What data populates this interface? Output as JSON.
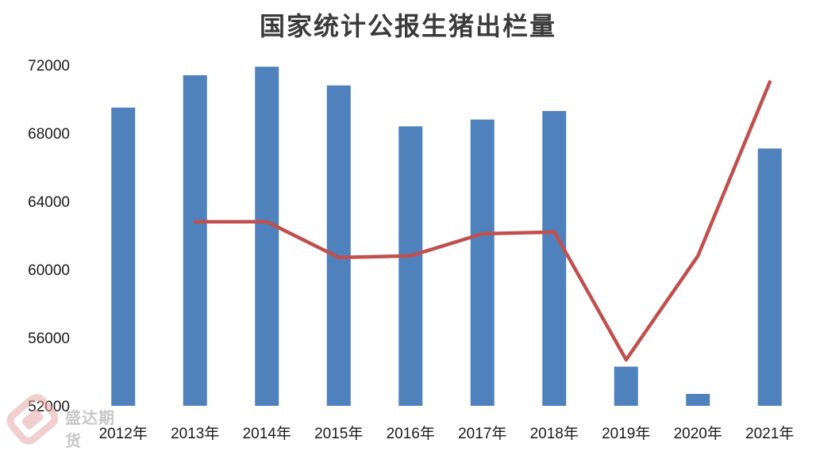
{
  "chart_data": {
    "type": "bar",
    "title": "国家统计公报生猪出栏量",
    "categories": [
      "2012年",
      "2013年",
      "2014年",
      "2015年",
      "2016年",
      "2017年",
      "2018年",
      "2019年",
      "2020年",
      "2021年"
    ],
    "series": [
      {
        "type": "bar",
        "color": "#4f81bd",
        "values": [
          69500,
          71400,
          71900,
          70800,
          68400,
          68800,
          69300,
          54300,
          52700,
          67100
        ]
      },
      {
        "type": "line",
        "color": "#c0504d",
        "values": [
          null,
          62800,
          62800,
          60700,
          60800,
          62100,
          62200,
          54700,
          60800,
          71000
        ]
      }
    ],
    "ylim": [
      52000,
      72000
    ],
    "yticks": [
      52000,
      56000,
      60000,
      64000,
      68000,
      72000
    ],
    "grid": false,
    "legend": "none"
  },
  "watermark": {
    "text": "盛达期货",
    "icon": "shengda-logo-icon"
  }
}
